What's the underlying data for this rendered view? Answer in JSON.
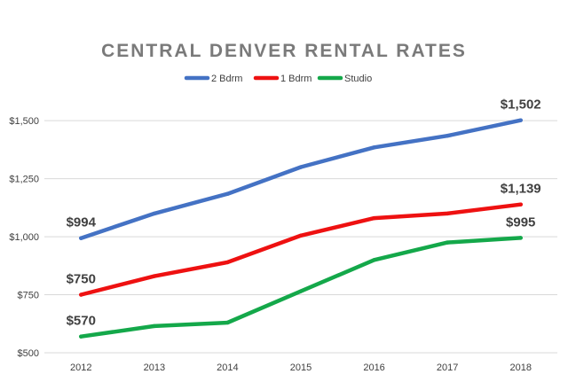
{
  "chart_data": {
    "type": "line",
    "title": "CENTRAL DENVER RENTAL RATES",
    "xlabel": "",
    "ylabel": "",
    "categories": [
      "2012",
      "2013",
      "2014",
      "2015",
      "2016",
      "2017",
      "2018"
    ],
    "ylim": [
      500,
      1600
    ],
    "yticks": [
      500,
      750,
      1000,
      1250,
      1500
    ],
    "ytick_labels": [
      "$500",
      "$750",
      "$1,000",
      "$1,250",
      "$1,500"
    ],
    "grid": "horizontal",
    "legend_position": "top-center",
    "series": [
      {
        "name": "2 Bdrm",
        "color": "#4472c4",
        "values": [
          994,
          1100,
          1185,
          1300,
          1385,
          1435,
          1502
        ],
        "labels": [
          {
            "index": 0,
            "text": "$994"
          },
          {
            "index": 6,
            "text": "$1,502"
          }
        ]
      },
      {
        "name": "1 Bdrm",
        "color": "#ee1111",
        "values": [
          750,
          830,
          890,
          1005,
          1080,
          1100,
          1139
        ],
        "labels": [
          {
            "index": 0,
            "text": "$750"
          },
          {
            "index": 6,
            "text": "$1,139"
          }
        ]
      },
      {
        "name": "Studio",
        "color": "#14a84a",
        "values": [
          570,
          615,
          630,
          765,
          900,
          975,
          995
        ],
        "labels": [
          {
            "index": 0,
            "text": "$570"
          },
          {
            "index": 6,
            "text": "$995"
          }
        ]
      }
    ]
  }
}
